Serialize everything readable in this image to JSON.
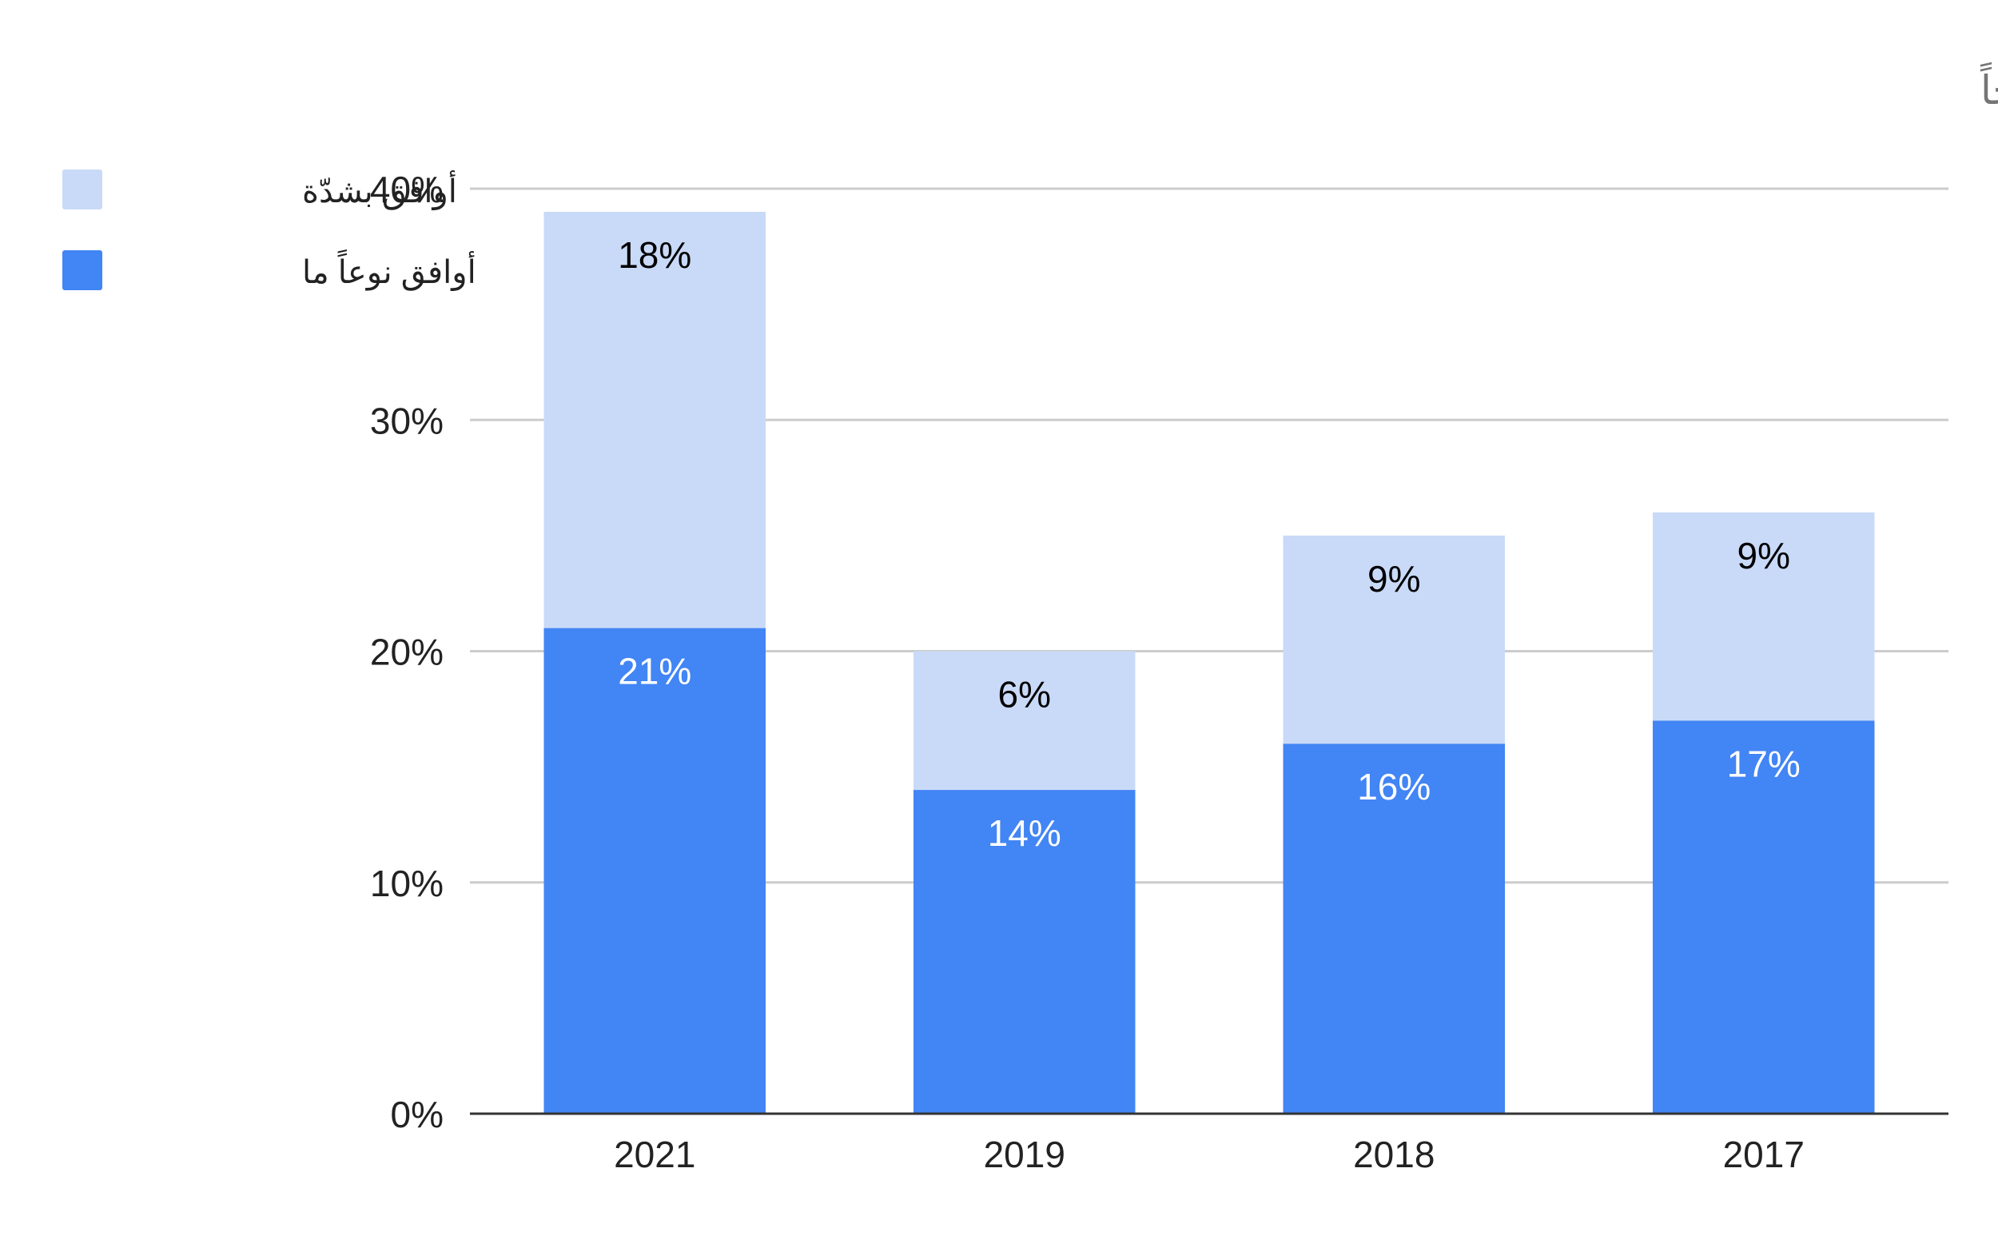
{
  "chart_data": {
    "type": "bar",
    "stacked": true,
    "title": "يجب أن نستمع إلى من حولنا، ممّن يحاولون تفسير الإسلام بطريقة عصرية وأكثر إعتدالاً وتسامحاً",
    "categories": [
      "2021",
      "2019",
      "2018",
      "2017"
    ],
    "series": [
      {
        "name": "أوافق نوعاً ما",
        "values": [
          21,
          14,
          16,
          17
        ],
        "color": "#4285f4",
        "label_color": "#ffffff"
      },
      {
        "name": "أوافق بشدّة",
        "values": [
          18,
          6,
          9,
          9
        ],
        "color": "#c9daf8",
        "label_color": "#000000"
      }
    ],
    "legend_order": [
      1,
      0
    ],
    "legend_position": "top-left",
    "ylim": [
      0,
      40
    ],
    "yticks": [
      0,
      10,
      20,
      30,
      40
    ],
    "ytick_format": "percent",
    "grid": true,
    "xlabel": "",
    "ylabel": ""
  }
}
